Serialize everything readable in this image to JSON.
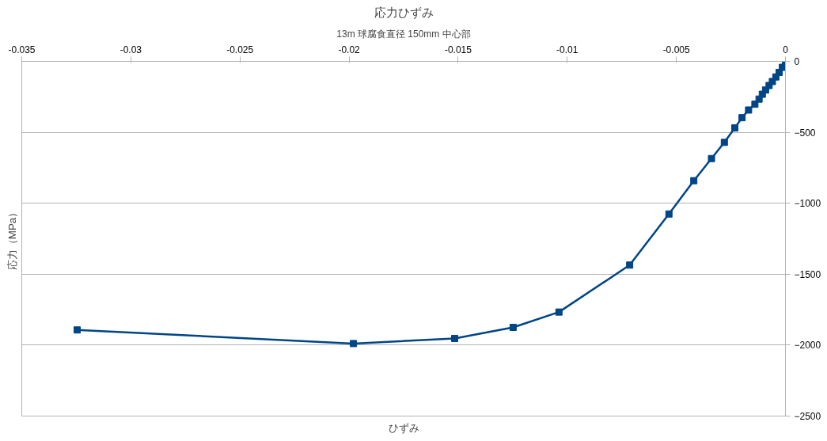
{
  "chart_data": {
    "type": "line",
    "title": "応力ひずみ",
    "subtitle": "13m 球腐食直径 150mm 中心部",
    "xlabel": "ひずみ",
    "ylabel": "応力（MPa）",
    "x": [
      -0.03246,
      -0.0198,
      -0.01516,
      -0.01248,
      -0.01038,
      -0.00714,
      -0.00534,
      -0.0042,
      -0.00339,
      -0.0028,
      -0.00232,
      -0.00199,
      -0.00169,
      -0.0014,
      -0.00121,
      -0.00106,
      -0.00091,
      -0.00075,
      -0.0006,
      -0.00044,
      -0.00029,
      -0.00014,
      0
    ],
    "series": [
      {
        "color": "#004586",
        "values": [
          -1893,
          -1989,
          -1953,
          -1875,
          -1767,
          -1436,
          -1076,
          -841,
          -685,
          -571,
          -469,
          -397,
          -343,
          -302,
          -266,
          -232,
          -202,
          -170,
          -142,
          -110,
          -78,
          -42,
          -6
        ]
      }
    ],
    "xlim": [
      -0.035,
      0
    ],
    "xticks": [
      -0.035,
      -0.03,
      -0.025,
      -0.02,
      -0.015,
      -0.01,
      -0.005,
      0
    ],
    "ylim": [
      -2500,
      0
    ],
    "yticks": [
      -2500,
      -2000,
      -1500,
      -1000,
      -500,
      0
    ],
    "grid": "y",
    "marker": "square",
    "line_style": "solid"
  }
}
